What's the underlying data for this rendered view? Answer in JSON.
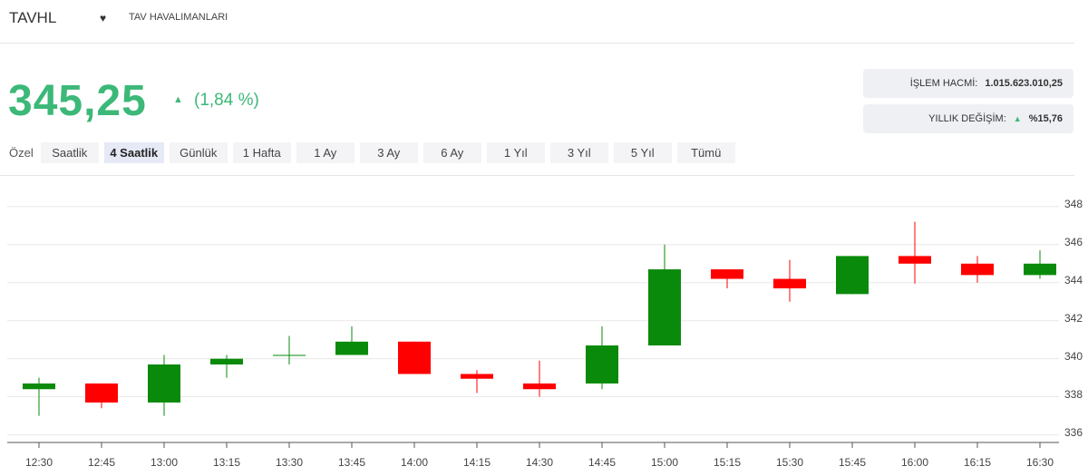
{
  "header": {
    "symbol": "TAVHL",
    "name": "TAV HAVALIMANLARI"
  },
  "price": {
    "value": "345,25",
    "change": "(1,84 %)"
  },
  "stats": [
    {
      "label": "İŞLEM HACMİ:",
      "value": "1.015.623.010,25"
    },
    {
      "label": "YILLIK DEĞİŞİM:",
      "value": "%15,76"
    }
  ],
  "tabs_label": "Özel",
  "tabs": [
    {
      "label": "Saatlik",
      "active": false
    },
    {
      "label": "4 Saatlik",
      "active": true
    },
    {
      "label": "Günlük",
      "active": false
    },
    {
      "label": "1 Hafta",
      "active": false
    },
    {
      "label": "1 Ay",
      "active": false
    },
    {
      "label": "3 Ay",
      "active": false
    },
    {
      "label": "6 Ay",
      "active": false
    },
    {
      "label": "1 Yıl",
      "active": false
    },
    {
      "label": "3 Yıl",
      "active": false
    },
    {
      "label": "5 Yıl",
      "active": false
    },
    {
      "label": "Tümü",
      "active": false
    }
  ],
  "chart_data": {
    "type": "candlestick",
    "categories": [
      "12:30",
      "12:45",
      "13:00",
      "13:15",
      "13:30",
      "13:45",
      "14:00",
      "14:15",
      "14:30",
      "14:45",
      "15:00",
      "15:15",
      "15:30",
      "15:45",
      "16:00",
      "16:15",
      "16:30"
    ],
    "open": [
      338.4,
      338.7,
      337.7,
      339.7,
      340.2,
      340.2,
      340.9,
      339.2,
      338.7,
      338.7,
      340.7,
      344.7,
      344.2,
      343.4,
      345.4,
      345.0,
      344.4
    ],
    "high": [
      339.0,
      338.7,
      340.2,
      340.2,
      341.2,
      341.7,
      340.9,
      339.4,
      339.9,
      341.7,
      346.0,
      344.7,
      345.2,
      345.4,
      347.2,
      345.4,
      345.7
    ],
    "low": [
      337.0,
      337.4,
      337.0,
      339.0,
      339.7,
      340.2,
      339.2,
      338.2,
      338.0,
      338.4,
      340.7,
      343.7,
      343.0,
      343.4,
      343.95,
      344.0,
      344.2
    ],
    "close": [
      338.7,
      337.7,
      339.7,
      340.0,
      340.2,
      340.9,
      339.2,
      338.95,
      338.4,
      340.7,
      344.7,
      344.2,
      343.7,
      345.4,
      345.0,
      344.4,
      345.0
    ],
    "up_color": "#0a8a0a",
    "down_color": "#ff0000",
    "ylim": [
      335.6,
      348.85
    ],
    "yticks": [
      336,
      338,
      340,
      342,
      344,
      346,
      348
    ],
    "grid": true
  }
}
